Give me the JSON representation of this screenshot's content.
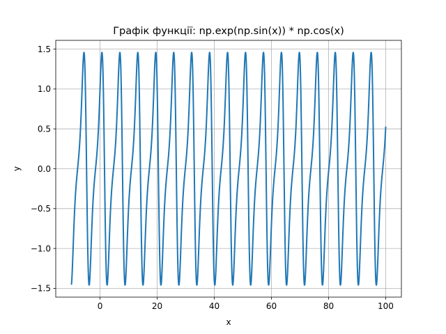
{
  "chart_data": {
    "type": "line",
    "title": "Графік функції: np.exp(np.sin(x)) * np.cos(x)",
    "xlabel": "x",
    "ylabel": "y",
    "xlim": [
      -15.5,
      105.5
    ],
    "ylim": [
      -1.61,
      1.61
    ],
    "xticks": [
      0,
      20,
      40,
      60,
      80,
      100
    ],
    "xtick_labels": [
      "0",
      "20",
      "40",
      "60",
      "80",
      "100"
    ],
    "yticks": [
      -1.5,
      -1.0,
      -0.5,
      0.0,
      0.5,
      1.0,
      1.5
    ],
    "ytick_labels": [
      "−1.5",
      "−1.0",
      "−0.5",
      "0.0",
      "0.5",
      "1.0",
      "1.5"
    ],
    "grid": true,
    "series": [
      {
        "function": "exp(sin(x)) * cos(x)",
        "x_range": [
          -10,
          100
        ],
        "color": "#1f77b4"
      }
    ]
  }
}
